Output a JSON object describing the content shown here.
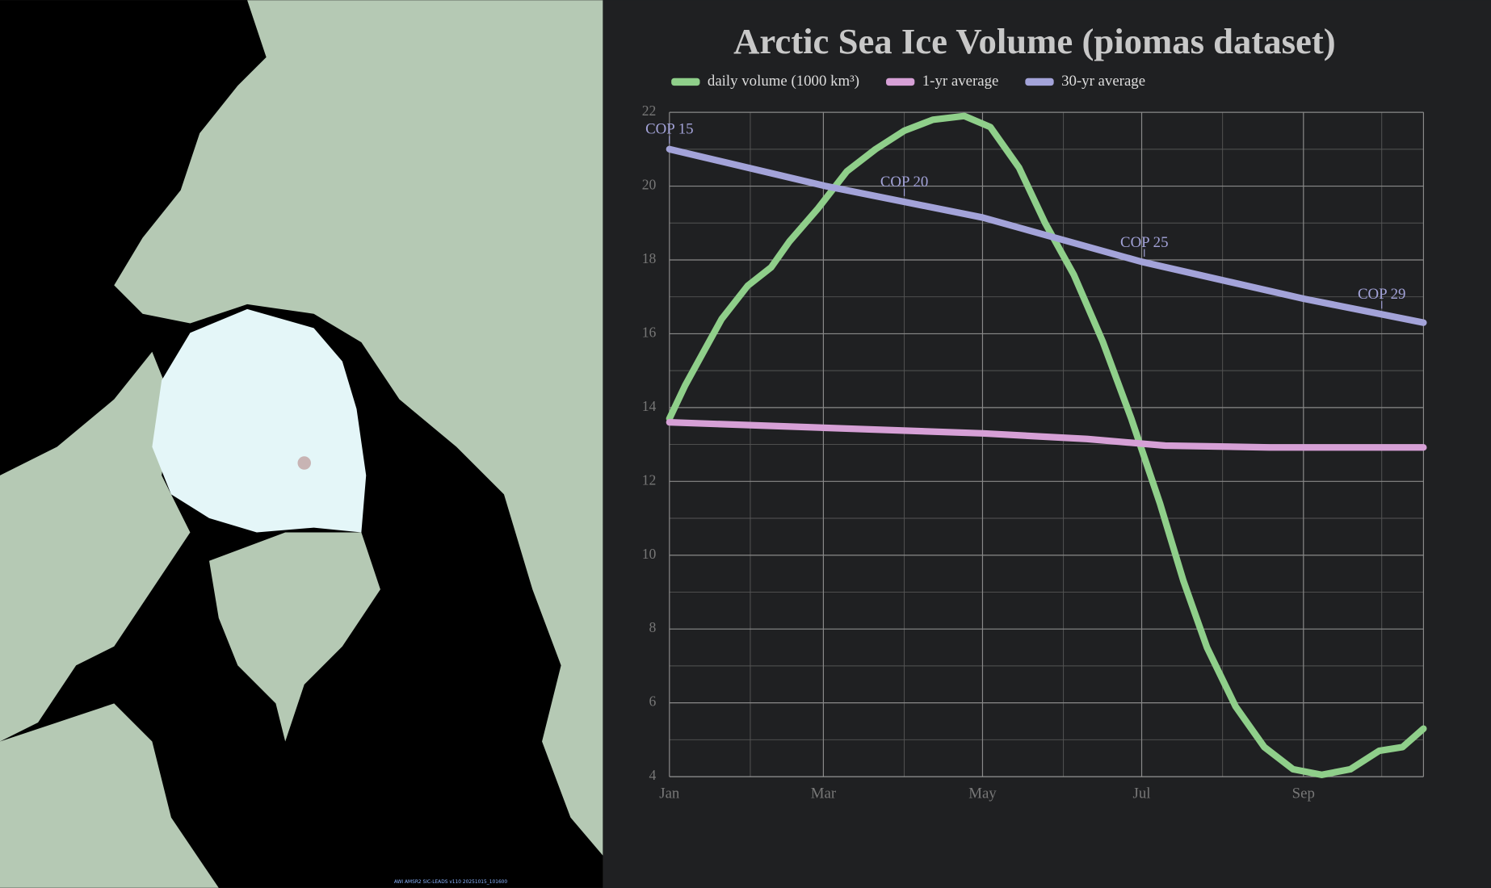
{
  "map_caption": "AWI AMSR2 SIC-LEADS v110 20251015_101600",
  "chart_data": {
    "type": "line",
    "title": "Arctic Sea Ice Volume (piomas dataset)",
    "xlim": [
      0,
      289
    ],
    "xticks": [
      {
        "value": 0,
        "label": "Jan"
      },
      {
        "value": 59,
        "label": "Mar"
      },
      {
        "value": 120,
        "label": "May"
      },
      {
        "value": 181,
        "label": "Jul"
      },
      {
        "value": 243,
        "label": "Sep"
      }
    ],
    "xminorticks": [
      31,
      90,
      151,
      212,
      273
    ],
    "ylim": [
      4,
      22
    ],
    "yticks": [
      4,
      6,
      8,
      10,
      12,
      14,
      16,
      18,
      20,
      22
    ],
    "yminorticks": [
      5,
      7,
      9,
      11,
      13,
      15,
      17,
      19,
      21
    ],
    "grid": true,
    "series": [
      {
        "name": "daily volume (1000 km³)",
        "color": "#8fcf8a",
        "x": [
          0,
          6,
          13,
          20,
          30,
          39,
          46,
          57,
          68,
          79,
          90,
          101,
          113,
          123,
          134,
          144,
          155,
          166,
          177,
          188,
          197,
          206,
          217,
          228,
          239,
          250,
          261,
          272,
          281,
          289
        ],
        "values": [
          13.7,
          14.6,
          15.5,
          16.4,
          17.3,
          17.8,
          18.5,
          19.4,
          20.4,
          21.0,
          21.5,
          21.8,
          21.9,
          21.6,
          20.5,
          19.0,
          17.6,
          15.8,
          13.7,
          11.4,
          9.3,
          7.5,
          5.9,
          4.8,
          4.2,
          4.05,
          4.2,
          4.7,
          4.8,
          5.3
        ]
      },
      {
        "name": "1-yr average",
        "color": "#d6a0d6",
        "x": [
          0,
          60,
          120,
          160,
          190,
          230,
          289
        ],
        "values": [
          13.6,
          13.45,
          13.3,
          13.15,
          12.97,
          12.92,
          12.92
        ]
      },
      {
        "name": "30-yr average",
        "color": "#a3a3d9",
        "x": [
          0,
          60,
          120,
          181,
          243,
          289
        ],
        "values": [
          21.0,
          20.0,
          19.15,
          17.95,
          16.95,
          16.3
        ],
        "annotations": [
          {
            "label": "COP 15",
            "x": 0
          },
          {
            "label": "COP 20",
            "x": 90
          },
          {
            "label": "COP 25",
            "x": 182
          },
          {
            "label": "COP 29",
            "x": 273
          }
        ]
      }
    ]
  }
}
